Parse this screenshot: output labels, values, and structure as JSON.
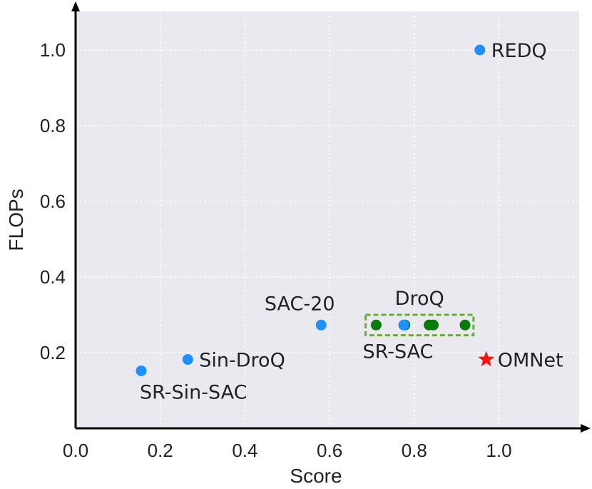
{
  "chart_data": {
    "type": "scatter",
    "title": "",
    "xlabel": "Score",
    "ylabel": "FLOPs",
    "xlim": [
      0.0,
      1.2
    ],
    "ylim": [
      0.0,
      1.1
    ],
    "x_ticks": [
      0.0,
      0.2,
      0.4,
      0.6,
      0.8,
      1.0
    ],
    "x_tick_labels": [
      "0.0",
      "0.2",
      "0.4",
      "0.6",
      "0.8",
      "1.0"
    ],
    "y_ticks": [
      0.2,
      0.4,
      0.6,
      0.8,
      1.0
    ],
    "y_tick_labels": [
      "0.2",
      "0.4",
      "0.6",
      "0.8",
      "1.0"
    ],
    "grid": true,
    "colors": {
      "background": "#e9e9ef",
      "baseline": "#1e90ff",
      "variant": "#0a7a0a",
      "highlight": "#ff1111",
      "box": "#6aaa3a",
      "axis": "#000000"
    },
    "points": [
      {
        "label": "REDQ",
        "x": 0.955,
        "y": 1.0,
        "marker": "circle",
        "group": "baseline",
        "label_pos": "right"
      },
      {
        "label": "SAC-20",
        "x": 0.58,
        "y": 0.273,
        "marker": "circle",
        "group": "baseline",
        "label_pos": "above-left"
      },
      {
        "label": "SR-SAC",
        "x": 0.775,
        "y": 0.273,
        "marker": "circle",
        "group": "baseline",
        "label_pos": "below"
      },
      {
        "label": "Sin-DroQ",
        "x": 0.265,
        "y": 0.182,
        "marker": "circle",
        "group": "baseline",
        "label_pos": "right"
      },
      {
        "label": "SR-Sin-SAC",
        "x": 0.155,
        "y": 0.152,
        "marker": "circle",
        "group": "baseline",
        "label_pos": "below-right"
      },
      {
        "label": "OMNet",
        "x": 0.97,
        "y": 0.182,
        "marker": "star",
        "group": "highlight",
        "label_pos": "right"
      }
    ],
    "droq_group": {
      "label": "DroQ",
      "y": 0.273,
      "x": [
        0.71,
        0.778,
        0.835,
        0.845,
        0.92
      ],
      "box_x": [
        0.685,
        0.94
      ],
      "box_y": [
        0.246,
        0.3
      ]
    }
  }
}
